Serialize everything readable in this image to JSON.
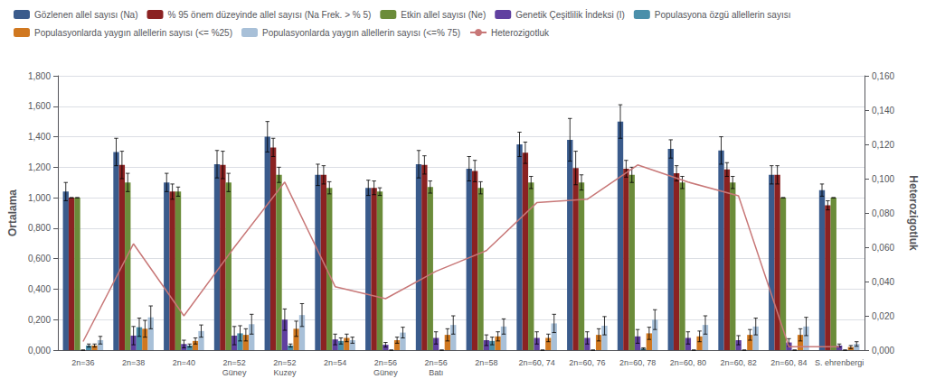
{
  "chart_data": {
    "type": "bar",
    "categories": [
      "2n=36",
      "2n=38",
      "2n=40",
      "2n=52\nGüney",
      "2n=52\nKuzey",
      "2n=54",
      "2n=56\nGüney",
      "2n=56\nBatı",
      "2n=58",
      "2n=60, 74",
      "2n=60, 76",
      "2n=60, 78",
      "2n=60, 80",
      "2n=60, 82",
      "2n=60, 84",
      "S. ehrenbergi"
    ],
    "series": [
      {
        "name": "Gözlenen allel sayısı (Na)",
        "color": "#3A5B8C",
        "values": [
          1.04,
          1.3,
          1.1,
          1.22,
          1.4,
          1.15,
          1.065,
          1.22,
          1.19,
          1.35,
          1.38,
          1.5,
          1.32,
          1.31,
          1.15,
          1.05
        ],
        "errors": [
          0.06,
          0.09,
          0.06,
          0.09,
          0.1,
          0.07,
          0.05,
          0.09,
          0.08,
          0.08,
          0.14,
          0.11,
          0.06,
          0.09,
          0.06,
          0.04
        ]
      },
      {
        "name": "% 95 önem düzeyinde allel sayısı (Na Frek. > % 5)",
        "color": "#8B2222",
        "values": [
          1.0,
          1.215,
          1.04,
          1.215,
          1.33,
          1.15,
          1.065,
          1.215,
          1.175,
          1.295,
          1.195,
          1.19,
          1.16,
          1.185,
          1.15,
          0.95
        ],
        "errors": [
          0.0,
          0.09,
          0.05,
          0.09,
          0.06,
          0.06,
          0.045,
          0.06,
          0.07,
          0.07,
          0.11,
          0.055,
          0.05,
          0.045,
          0.06,
          0.03
        ]
      },
      {
        "name": "Etkin allel sayısı (Ne)",
        "color": "#6B8C3A",
        "values": [
          1.0,
          1.1,
          1.04,
          1.1,
          1.15,
          1.065,
          1.04,
          1.07,
          1.065,
          1.1,
          1.1,
          1.15,
          1.1,
          1.1,
          1.0,
          1.0
        ],
        "errors": [
          0.0,
          0.06,
          0.03,
          0.06,
          0.05,
          0.04,
          0.025,
          0.04,
          0.04,
          0.04,
          0.05,
          0.05,
          0.04,
          0.04,
          0.0,
          0.0
        ]
      },
      {
        "name": "Genetik Çeşitlilik İndeksi (I)",
        "color": "#6040A0",
        "values": [
          0.0,
          0.095,
          0.04,
          0.095,
          0.2,
          0.07,
          0.035,
          0.08,
          0.065,
          0.08,
          0.08,
          0.09,
          0.08,
          0.065,
          0.05,
          0.03
        ],
        "errors": [
          0.0,
          0.06,
          0.025,
          0.06,
          0.07,
          0.035,
          0.015,
          0.04,
          0.035,
          0.04,
          0.04,
          0.045,
          0.04,
          0.03,
          0.025,
          0.01
        ]
      },
      {
        "name": "Populasyona özgü allellerin sayısı",
        "color": "#4A8FAA",
        "values": [
          0.03,
          0.15,
          0.03,
          0.11,
          0.03,
          0.06,
          0.0,
          0.0,
          0.06,
          0.0,
          0.0,
          0.01,
          0.0,
          0.0,
          0.0,
          0.0
        ],
        "errors": [
          0.01,
          0.06,
          0.01,
          0.05,
          0.01,
          0.02,
          0.0,
          0.0,
          0.025,
          0.0,
          0.0,
          0.005,
          0.0,
          0.0,
          0.0,
          0.0
        ]
      },
      {
        "name": "Populasyonlarda yaygın allellerin sayısı (<= %25)",
        "color": "#D07820",
        "values": [
          0.03,
          0.14,
          0.06,
          0.1,
          0.14,
          0.08,
          0.065,
          0.1,
          0.09,
          0.08,
          0.1,
          0.11,
          0.09,
          0.1,
          0.1,
          0.02
        ],
        "errors": [
          0.01,
          0.055,
          0.02,
          0.04,
          0.05,
          0.025,
          0.02,
          0.04,
          0.03,
          0.025,
          0.04,
          0.04,
          0.035,
          0.035,
          0.04,
          0.01
        ]
      },
      {
        "name": "Populasyonlarda yaygın allellerin sayısı (<=% 75)",
        "color": "#A8C0D8",
        "values": [
          0.065,
          0.215,
          0.125,
          0.17,
          0.23,
          0.065,
          0.115,
          0.165,
          0.155,
          0.175,
          0.16,
          0.2,
          0.165,
          0.155,
          0.155,
          0.04
        ],
        "errors": [
          0.025,
          0.075,
          0.04,
          0.065,
          0.075,
          0.02,
          0.035,
          0.06,
          0.05,
          0.06,
          0.06,
          0.065,
          0.06,
          0.055,
          0.06,
          0.015
        ]
      },
      {
        "name": "Heterozigotluk",
        "type": "line",
        "axis": "y2",
        "color": "#C87878",
        "values": [
          0.005,
          0.062,
          0.02,
          0.06,
          0.098,
          0.037,
          0.03,
          0.046,
          0.058,
          0.086,
          0.088,
          0.108,
          0.098,
          0.09,
          0.002,
          0.002
        ]
      }
    ],
    "ylabel": "Ortalama",
    "y2label": "Heterozigotluk",
    "ylim": [
      0.0,
      1.8
    ],
    "yticks": [
      {
        "value": 0.0,
        "label": "0,000"
      },
      {
        "value": 0.2,
        "label": "0,200"
      },
      {
        "value": 0.4,
        "label": "0,400"
      },
      {
        "value": 0.6,
        "label": "0,600"
      },
      {
        "value": 0.8,
        "label": "0,800"
      },
      {
        "value": 1.0,
        "label": "1,000"
      },
      {
        "value": 1.2,
        "label": "1,200"
      },
      {
        "value": 1.4,
        "label": "1,400"
      },
      {
        "value": 1.6,
        "label": "1,600"
      },
      {
        "value": 1.8,
        "label": "1,800"
      }
    ],
    "y2lim": [
      0.0,
      0.16
    ],
    "y2ticks": [
      {
        "value": 0.0,
        "label": "0,000"
      },
      {
        "value": 0.02,
        "label": "0,020"
      },
      {
        "value": 0.04,
        "label": "0,040"
      },
      {
        "value": 0.06,
        "label": "0,060"
      },
      {
        "value": 0.08,
        "label": "0,080"
      },
      {
        "value": 0.1,
        "label": "0,100"
      },
      {
        "value": 0.12,
        "label": "0,120"
      },
      {
        "value": 0.14,
        "label": "0,140"
      },
      {
        "value": 0.16,
        "label": "0,160"
      }
    ],
    "grid": true,
    "legend": "upper left"
  }
}
